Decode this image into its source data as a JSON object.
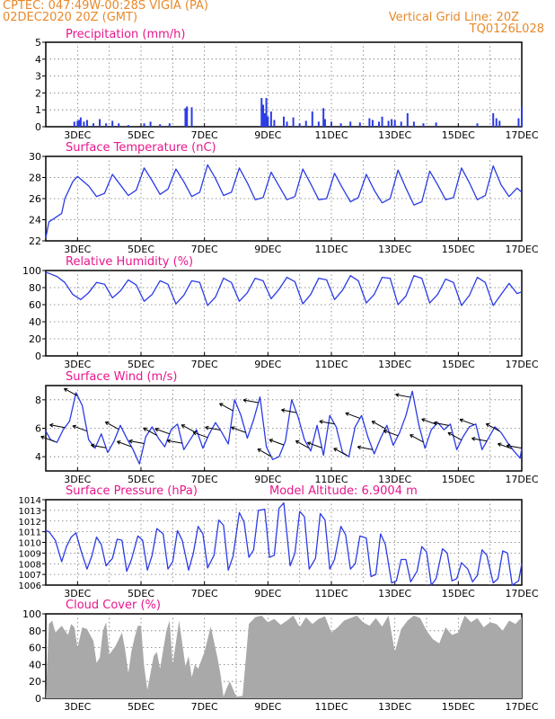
{
  "header": {
    "station_line": "CPTEC:   047:49W-00:28S   VIGIA (PA)",
    "date_line": "02DEC2020 20Z (GMT)",
    "grid_note": "Vertical Grid Line: 20Z",
    "product_code": "TQ0126L028"
  },
  "colors": {
    "header_text": "#e8892a",
    "panel_title": "#e8168c",
    "series_line": "#2b3be6",
    "precip_bar": "#2b3be6",
    "cloud_fill": "#a9a9a9",
    "wind_arrow": "#000000"
  },
  "x_axis": {
    "start_day": 2,
    "end_day": 17,
    "tick_labels": [
      "3DEC",
      "5DEC",
      "7DEC",
      "9DEC",
      "11DEC",
      "13DEC",
      "15DEC",
      "17DEC"
    ]
  },
  "chart_data": [
    {
      "id": "precip",
      "type": "bar",
      "title": "Precipitation (mm/h)",
      "ylim": [
        0,
        5
      ],
      "yticks": [
        0,
        1,
        2,
        3,
        4,
        5
      ],
      "grid": true,
      "x_unit": "day of December 2020",
      "x": [
        2.9,
        3.0,
        3.05,
        3.1,
        3.2,
        3.3,
        3.5,
        3.7,
        3.9,
        4.1,
        4.3,
        4.6,
        5.1,
        5.3,
        5.6,
        5.9,
        6.4,
        6.45,
        6.6,
        8.8,
        8.85,
        8.9,
        8.95,
        9.0,
        9.1,
        9.2,
        9.5,
        9.6,
        9.8,
        10.0,
        10.2,
        10.4,
        10.6,
        10.75,
        10.8,
        11.0,
        11.3,
        11.6,
        11.9,
        12.2,
        12.3,
        12.5,
        12.6,
        12.8,
        12.9,
        13.0,
        13.2,
        13.4,
        13.6,
        13.9,
        14.3,
        15.6,
        16.1,
        16.2,
        16.3,
        16.9,
        17.0
      ],
      "values": [
        0.3,
        0.35,
        0.4,
        0.55,
        0.3,
        0.4,
        0.2,
        0.45,
        0.2,
        0.35,
        0.2,
        0.1,
        0.2,
        0.3,
        0.15,
        0.2,
        1.1,
        1.2,
        1.15,
        1.7,
        1.3,
        0.8,
        1.7,
        0.6,
        0.9,
        0.4,
        0.6,
        0.3,
        0.55,
        0.2,
        0.35,
        0.9,
        0.3,
        1.1,
        0.45,
        0.3,
        0.2,
        0.3,
        0.25,
        0.5,
        0.4,
        0.3,
        0.6,
        0.35,
        0.45,
        0.4,
        0.3,
        0.8,
        0.3,
        0.2,
        0.25,
        0.2,
        0.8,
        0.5,
        0.35,
        0.5,
        1.2
      ]
    },
    {
      "id": "temperature",
      "type": "line",
      "title": "Surface Temperature (nC)",
      "ylim": [
        22,
        30
      ],
      "yticks": [
        22,
        24,
        26,
        28,
        30
      ],
      "grid": true,
      "x_unit": "day of December 2020",
      "x": [
        2.0,
        2.1,
        2.3,
        2.5,
        2.6,
        2.85,
        3.0,
        3.35,
        3.6,
        3.85,
        4.1,
        4.35,
        4.6,
        4.85,
        5.1,
        5.35,
        5.6,
        5.85,
        6.1,
        6.35,
        6.6,
        6.85,
        7.1,
        7.35,
        7.6,
        7.85,
        8.1,
        8.35,
        8.6,
        8.85,
        9.1,
        9.35,
        9.6,
        9.85,
        10.1,
        10.35,
        10.6,
        10.85,
        11.1,
        11.35,
        11.6,
        11.85,
        12.1,
        12.35,
        12.6,
        12.85,
        13.1,
        13.35,
        13.6,
        13.85,
        14.1,
        14.35,
        14.6,
        14.85,
        15.1,
        15.35,
        15.6,
        15.85,
        16.1,
        16.35,
        16.6,
        16.85,
        17.0
      ],
      "values": [
        22.3,
        23.8,
        24.2,
        24.6,
        26.0,
        27.6,
        28.1,
        27.2,
        26.2,
        26.5,
        28.3,
        27.3,
        26.3,
        26.8,
        28.9,
        27.7,
        26.4,
        26.9,
        28.8,
        27.6,
        26.2,
        26.6,
        29.2,
        27.9,
        26.3,
        26.6,
        28.9,
        27.5,
        25.9,
        26.1,
        28.5,
        27.2,
        25.9,
        26.2,
        28.8,
        27.4,
        25.9,
        26.0,
        28.4,
        27.0,
        25.7,
        26.1,
        28.3,
        26.8,
        25.6,
        26.0,
        28.7,
        27.0,
        25.4,
        25.7,
        28.6,
        27.3,
        25.9,
        26.1,
        28.9,
        27.5,
        25.9,
        26.3,
        29.1,
        27.3,
        26.2,
        27.0,
        26.6
      ]
    },
    {
      "id": "humidity",
      "type": "line",
      "title": "Relative Humidity (%)",
      "ylim": [
        0,
        100
      ],
      "yticks": [
        0,
        20,
        40,
        60,
        80,
        100
      ],
      "grid": true,
      "x_unit": "day of December 2020",
      "x": [
        2.0,
        2.15,
        2.35,
        2.6,
        2.85,
        3.1,
        3.35,
        3.6,
        3.85,
        4.1,
        4.35,
        4.6,
        4.85,
        5.1,
        5.35,
        5.6,
        5.85,
        6.1,
        6.35,
        6.6,
        6.85,
        7.1,
        7.35,
        7.6,
        7.85,
        8.1,
        8.35,
        8.6,
        8.85,
        9.1,
        9.35,
        9.6,
        9.85,
        10.1,
        10.35,
        10.6,
        10.85,
        11.1,
        11.35,
        11.6,
        11.85,
        12.1,
        12.35,
        12.6,
        12.85,
        13.1,
        13.35,
        13.6,
        13.85,
        14.1,
        14.35,
        14.6,
        14.85,
        15.1,
        15.35,
        15.6,
        15.85,
        16.1,
        16.35,
        16.6,
        16.85,
        17.0
      ],
      "values": [
        98,
        96,
        93,
        86,
        72,
        66,
        74,
        86,
        84,
        68,
        76,
        89,
        83,
        64,
        72,
        88,
        84,
        61,
        71,
        88,
        86,
        59,
        69,
        91,
        86,
        64,
        74,
        91,
        88,
        67,
        78,
        92,
        87,
        61,
        72,
        91,
        89,
        66,
        77,
        94,
        88,
        62,
        72,
        92,
        91,
        60,
        70,
        94,
        91,
        62,
        72,
        90,
        86,
        59,
        71,
        92,
        86,
        59,
        72,
        85,
        73,
        75
      ]
    },
    {
      "id": "wind",
      "type": "line",
      "title": "Surface Wind (m/s)",
      "ylim": [
        3,
        9
      ],
      "yticks": [
        4,
        6,
        8
      ],
      "grid": true,
      "x_unit": "day of December 2020",
      "x": [
        2.0,
        2.15,
        2.35,
        2.55,
        2.75,
        2.95,
        3.15,
        3.35,
        3.55,
        3.75,
        3.95,
        4.15,
        4.35,
        4.55,
        4.75,
        4.95,
        5.15,
        5.35,
        5.55,
        5.75,
        5.95,
        6.15,
        6.35,
        6.55,
        6.75,
        6.95,
        7.15,
        7.35,
        7.55,
        7.75,
        7.95,
        8.15,
        8.35,
        8.55,
        8.75,
        8.95,
        9.15,
        9.35,
        9.55,
        9.75,
        9.95,
        10.15,
        10.35,
        10.55,
        10.75,
        10.95,
        11.15,
        11.35,
        11.55,
        11.75,
        11.95,
        12.15,
        12.35,
        12.55,
        12.75,
        12.95,
        13.15,
        13.35,
        13.55,
        13.75,
        13.95,
        14.15,
        14.35,
        14.55,
        14.75,
        14.95,
        15.15,
        15.35,
        15.55,
        15.75,
        15.95,
        16.15,
        16.35,
        16.55,
        16.75,
        16.95,
        17.0
      ],
      "values": [
        5.8,
        5.2,
        5.0,
        5.9,
        6.5,
        8.5,
        7.6,
        5.2,
        4.6,
        5.6,
        4.3,
        5.1,
        6.2,
        5.3,
        4.5,
        3.5,
        5.4,
        6.1,
        5.3,
        4.7,
        5.9,
        6.3,
        4.5,
        5.2,
        5.9,
        4.6,
        5.6,
        6.4,
        5.7,
        4.9,
        8.0,
        6.9,
        5.3,
        6.6,
        8.2,
        4.7,
        3.8,
        4.0,
        5.1,
        8.0,
        6.8,
        5.2,
        4.4,
        6.2,
        4.1,
        6.9,
        6.1,
        4.3,
        4.0,
        6.1,
        6.9,
        5.4,
        4.2,
        5.3,
        6.2,
        4.8,
        5.7,
        6.9,
        8.6,
        6.3,
        4.6,
        5.9,
        6.4,
        5.9,
        6.3,
        4.5,
        5.4,
        6.1,
        6.3,
        4.5,
        5.3,
        6.1,
        5.7,
        5.0,
        4.4,
        3.9,
        4.6
      ],
      "vectors_x": [
        2.3,
        2.6,
        3.0,
        3.3,
        3.9,
        4.3,
        4.7,
        5.1,
        5.5,
        5.9,
        6.3,
        6.7,
        7.1,
        7.5,
        7.9,
        8.3,
        8.7,
        9.1,
        9.5,
        9.9,
        10.3,
        10.7,
        11.1,
        11.5,
        11.9,
        12.3,
        12.7,
        13.1,
        13.5,
        13.9,
        14.3,
        14.7,
        15.1,
        15.5,
        15.9,
        16.3,
        16.7,
        17.0
      ]
    },
    {
      "id": "pressure",
      "type": "line",
      "title": "Surface Pressure (hPa)",
      "annotation": "Model Altitude: 6.9004 m",
      "ylim": [
        1006,
        1014
      ],
      "yticks": [
        1006,
        1007,
        1008,
        1009,
        1010,
        1011,
        1012,
        1013,
        1014
      ],
      "grid": true,
      "x_unit": "day of December 2020",
      "x": [
        2.0,
        2.1,
        2.2,
        2.3,
        2.5,
        2.65,
        2.8,
        2.95,
        3.1,
        3.3,
        3.45,
        3.6,
        3.75,
        3.9,
        4.1,
        4.25,
        4.4,
        4.55,
        4.7,
        4.9,
        5.05,
        5.2,
        5.35,
        5.5,
        5.7,
        5.85,
        6.0,
        6.15,
        6.3,
        6.5,
        6.65,
        6.8,
        6.95,
        7.1,
        7.3,
        7.45,
        7.6,
        7.75,
        7.9,
        8.1,
        8.25,
        8.4,
        8.55,
        8.7,
        8.9,
        9.05,
        9.2,
        9.35,
        9.5,
        9.7,
        9.85,
        10.0,
        10.15,
        10.3,
        10.5,
        10.65,
        10.8,
        10.95,
        11.1,
        11.3,
        11.45,
        11.6,
        11.75,
        11.9,
        12.1,
        12.25,
        12.4,
        12.55,
        12.7,
        12.9,
        13.05,
        13.2,
        13.35,
        13.5,
        13.7,
        13.85,
        14.0,
        14.15,
        14.3,
        14.5,
        14.65,
        14.8,
        14.95,
        15.1,
        15.3,
        15.45,
        15.6,
        15.75,
        15.9,
        16.1,
        16.25,
        16.4,
        16.55,
        16.7,
        16.9,
        17.0
      ],
      "values": [
        1011.1,
        1011.0,
        1010.6,
        1010.2,
        1008.2,
        1009.6,
        1010.5,
        1010.9,
        1009.3,
        1007.5,
        1008.7,
        1010.5,
        1009.8,
        1007.8,
        1008.5,
        1010.3,
        1010.2,
        1007.3,
        1008.4,
        1010.6,
        1010.2,
        1007.4,
        1008.8,
        1011.3,
        1010.8,
        1007.5,
        1008.2,
        1011.1,
        1010.2,
        1007.4,
        1009.0,
        1011.5,
        1010.8,
        1007.6,
        1008.8,
        1012.1,
        1011.6,
        1007.4,
        1008.7,
        1012.8,
        1011.9,
        1008.6,
        1009.3,
        1013.0,
        1013.1,
        1008.6,
        1008.8,
        1013.2,
        1013.7,
        1007.8,
        1009.0,
        1012.9,
        1012.4,
        1007.5,
        1008.5,
        1012.7,
        1012.1,
        1007.5,
        1008.4,
        1011.5,
        1010.7,
        1007.5,
        1008.0,
        1010.6,
        1010.4,
        1006.8,
        1007.0,
        1010.8,
        1009.8,
        1006.2,
        1006.4,
        1008.4,
        1008.4,
        1006.3,
        1007.3,
        1009.6,
        1009.1,
        1006.0,
        1006.6,
        1009.4,
        1009.0,
        1006.4,
        1006.6,
        1008.1,
        1007.5,
        1006.3,
        1006.9,
        1009.3,
        1008.8,
        1006.2,
        1006.6,
        1009.2,
        1009.0,
        1006.0,
        1006.4,
        1008.0
      ]
    },
    {
      "id": "cloud",
      "type": "area",
      "title": "Cloud Cover (%)",
      "ylim": [
        0,
        100
      ],
      "yticks": [
        0,
        20,
        40,
        60,
        80,
        100
      ],
      "grid": true,
      "x_unit": "day of December 2020",
      "x": [
        2.0,
        2.1,
        2.2,
        2.3,
        2.5,
        2.7,
        2.8,
        2.9,
        3.0,
        3.15,
        3.3,
        3.5,
        3.6,
        3.7,
        3.8,
        3.9,
        4.0,
        4.2,
        4.4,
        4.5,
        4.6,
        4.7,
        4.8,
        4.9,
        5.0,
        5.1,
        5.2,
        5.4,
        5.5,
        5.6,
        5.8,
        5.9,
        6.0,
        6.2,
        6.4,
        6.5,
        6.6,
        6.7,
        6.8,
        7.0,
        7.2,
        7.4,
        7.5,
        7.6,
        7.7,
        7.8,
        8.0,
        8.2,
        8.4,
        8.6,
        8.8,
        9.0,
        9.2,
        9.4,
        9.6,
        9.8,
        10.0,
        10.2,
        10.4,
        10.6,
        10.8,
        11.0,
        11.2,
        11.4,
        11.6,
        11.8,
        12.0,
        12.2,
        12.4,
        12.6,
        12.8,
        13.0,
        13.2,
        13.4,
        13.6,
        13.8,
        14.0,
        14.2,
        14.4,
        14.6,
        14.8,
        15.0,
        15.2,
        15.4,
        15.6,
        15.8,
        16.0,
        16.2,
        16.4,
        16.6,
        16.8,
        17.0
      ],
      "values": [
        0,
        88,
        92,
        78,
        86,
        75,
        88,
        84,
        60,
        84,
        82,
        68,
        42,
        48,
        80,
        90,
        52,
        62,
        78,
        58,
        30,
        56,
        72,
        86,
        86,
        38,
        10,
        50,
        55,
        35,
        80,
        92,
        40,
        92,
        38,
        50,
        25,
        40,
        35,
        55,
        85,
        50,
        30,
        2,
        12,
        20,
        2,
        3,
        88,
        96,
        98,
        90,
        94,
        87,
        92,
        98,
        84,
        96,
        88,
        94,
        97,
        78,
        84,
        92,
        95,
        98,
        90,
        86,
        95,
        85,
        98,
        55,
        82,
        92,
        98,
        95,
        80,
        70,
        65,
        84,
        75,
        78,
        98,
        90,
        95,
        84,
        90,
        88,
        80,
        92,
        88,
        96
      ]
    }
  ]
}
